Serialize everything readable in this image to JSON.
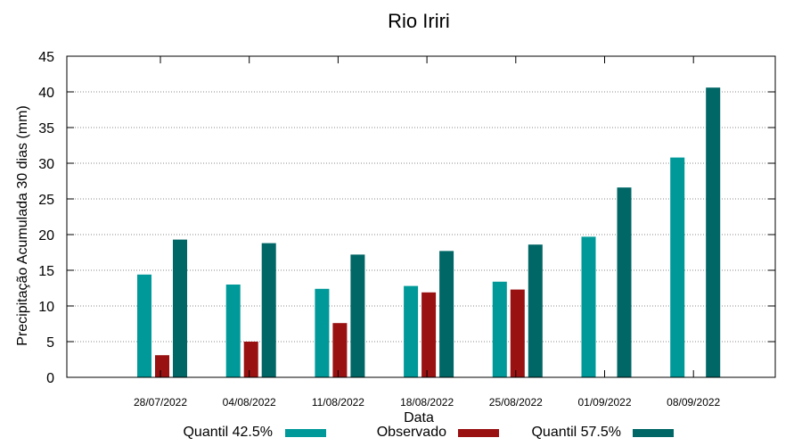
{
  "chart_data": {
    "type": "bar",
    "title": "Rio Iriri",
    "xlabel": "Data",
    "ylabel": "Precipitação Acumulada 30 dias (mm)",
    "ylim": [
      0,
      45
    ],
    "yticks": [
      0,
      5,
      10,
      15,
      20,
      25,
      30,
      35,
      40,
      45
    ],
    "grid": true,
    "legend_position": "bottom",
    "categories": [
      "28/07/2022",
      "04/08/2022",
      "11/08/2022",
      "18/08/2022",
      "25/08/2022",
      "01/09/2022",
      "08/09/2022"
    ],
    "series": [
      {
        "name": "Quantil 42.5%",
        "color": "#009999",
        "values": [
          14.4,
          13.0,
          12.4,
          12.8,
          13.4,
          19.7,
          30.8
        ]
      },
      {
        "name": "Observado",
        "color": "#991111",
        "values": [
          3.1,
          5.0,
          7.6,
          11.9,
          12.3,
          null,
          null
        ]
      },
      {
        "name": "Quantil 57.5%",
        "color": "#006666",
        "values": [
          19.3,
          18.8,
          17.2,
          17.7,
          18.6,
          26.6,
          40.6
        ]
      }
    ]
  }
}
